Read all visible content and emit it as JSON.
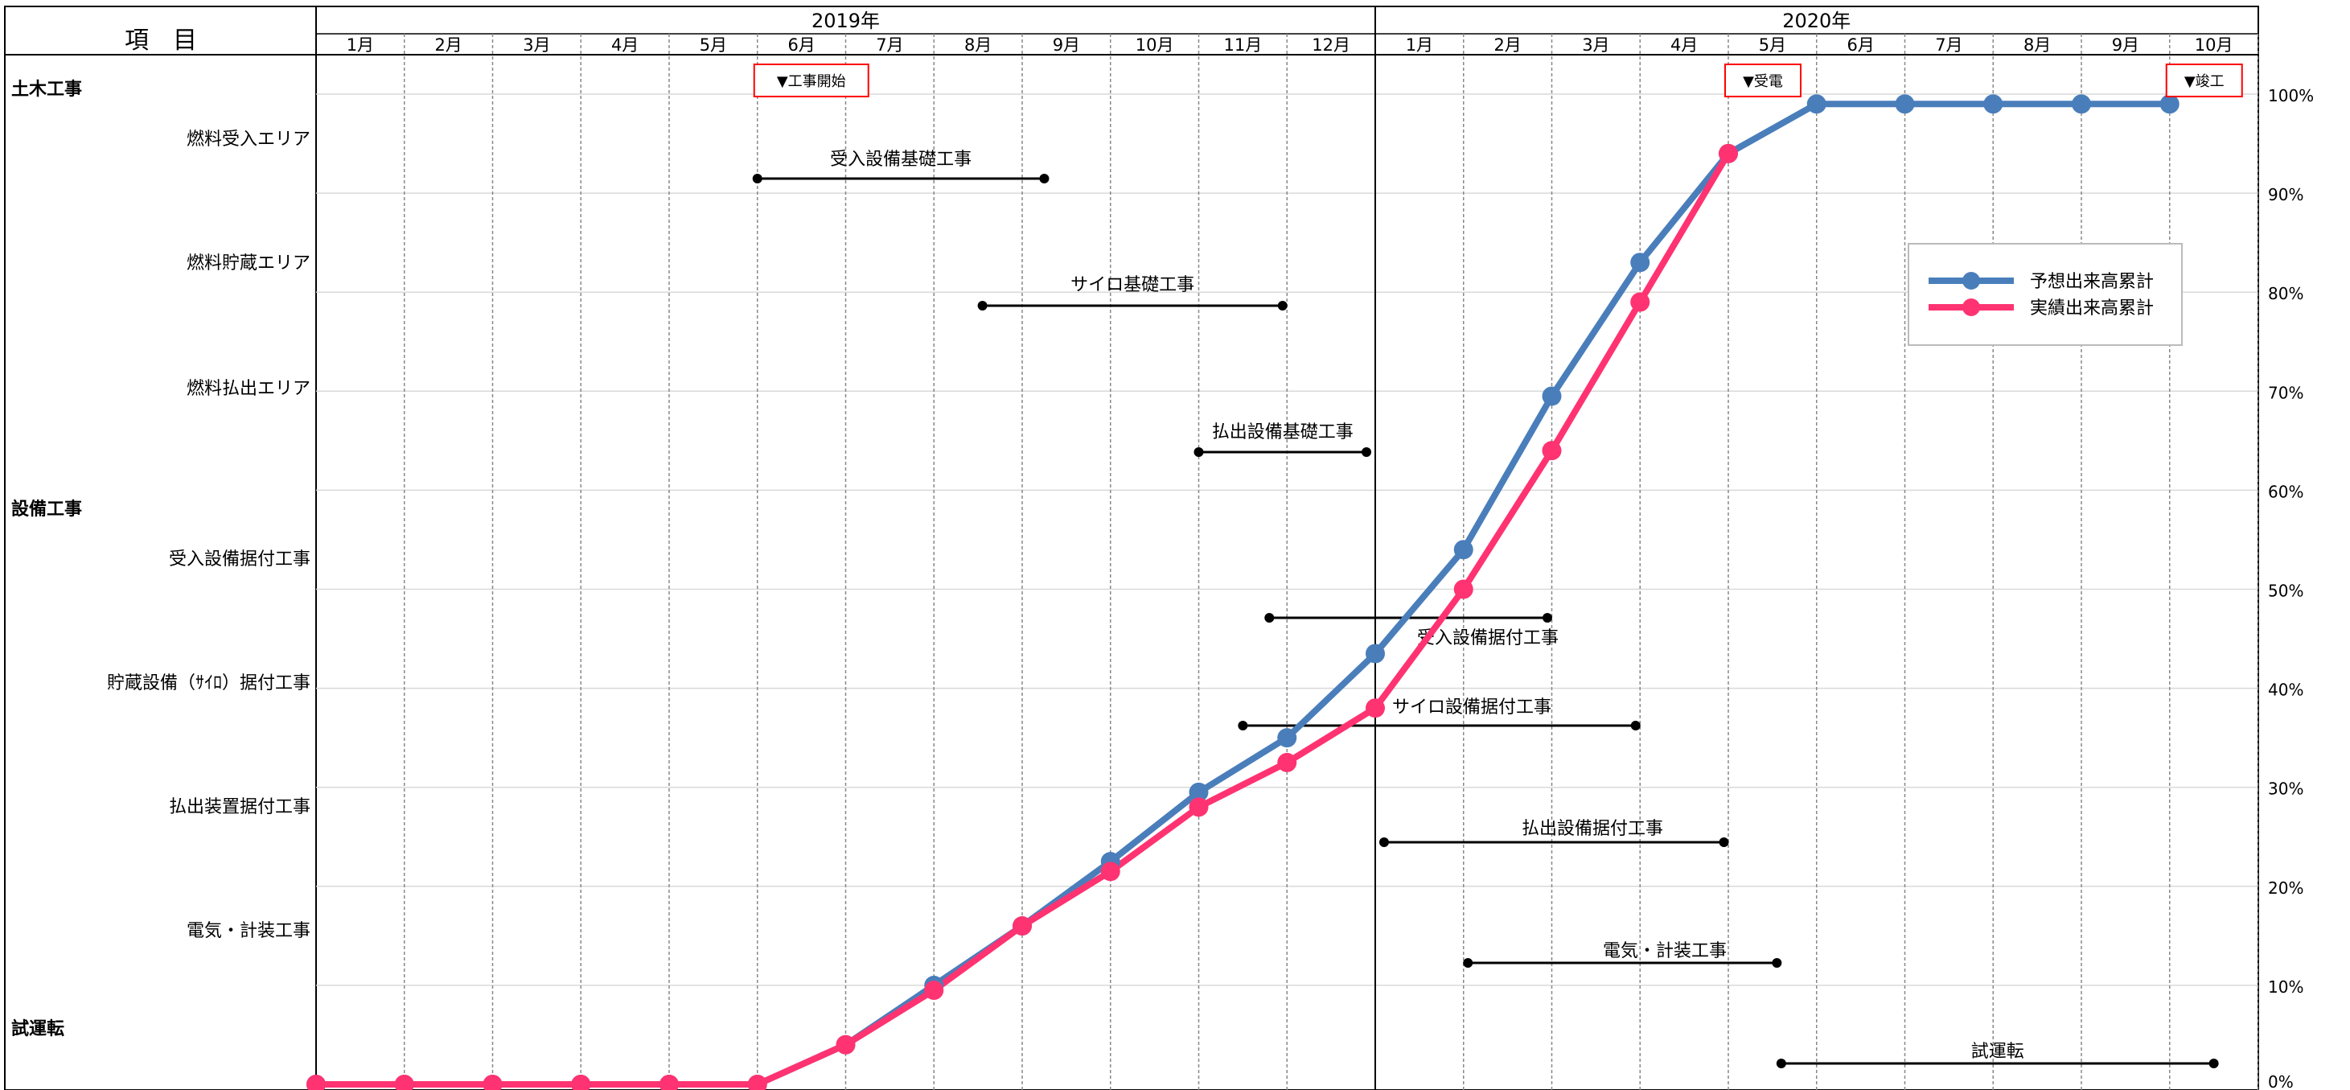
{
  "header": {
    "item_label": "項　目",
    "years": [
      "2019年",
      "2020年"
    ],
    "months_2019": [
      "1月",
      "2月",
      "3月",
      "4月",
      "5月",
      "6月",
      "7月",
      "8月",
      "9月",
      "10月",
      "11月",
      "12月"
    ],
    "months_2020": [
      "1月",
      "2月",
      "3月",
      "4月",
      "5月",
      "6月",
      "7月",
      "8月",
      "9月",
      "10月"
    ]
  },
  "milestones": [
    {
      "label": "▼工事開始",
      "month_index": 5
    },
    {
      "label": "▼受電",
      "month_index": 16
    },
    {
      "label": "▼竣工",
      "month_index": 21
    }
  ],
  "rows": [
    {
      "label": "土木工事",
      "kind": "category"
    },
    {
      "label": "燃料受入エリア",
      "kind": "item"
    },
    {
      "label": "燃料貯蔵エリア",
      "kind": "item"
    },
    {
      "label": "燃料払出エリア",
      "kind": "item"
    },
    {
      "label": "設備工事",
      "kind": "category"
    },
    {
      "label": "受入設備据付工事",
      "kind": "item"
    },
    {
      "label": "貯蔵設備（ｻｲﾛ）据付工事",
      "kind": "item"
    },
    {
      "label": "払出装置据付工事",
      "kind": "item"
    },
    {
      "label": "電気・計装工事",
      "kind": "item"
    },
    {
      "label": "試運転",
      "kind": "category"
    }
  ],
  "tasks": [
    {
      "label": "受入設備基礎工事",
      "start": 5.0,
      "end": 8.25
    },
    {
      "label": "サイロ基礎工事",
      "start": 7.55,
      "end": 10.95
    },
    {
      "label": "払出設備基礎工事",
      "start": 10.0,
      "end": 11.9
    },
    {
      "label": "受入設備据付工事",
      "start": 10.8,
      "end": 13.95
    },
    {
      "label": "サイロ設備据付工事",
      "start": 10.5,
      "end": 14.95
    },
    {
      "label": "払出設備据付工事",
      "start": 12.1,
      "end": 15.95
    },
    {
      "label": "電気・計装工事",
      "start": 13.05,
      "end": 16.55
    },
    {
      "label": "試運転",
      "start": 16.6,
      "end": 21.5
    }
  ],
  "chart_data": {
    "type": "line",
    "y_axis_ticks": [
      "0%",
      "10%",
      "20%",
      "30%",
      "40%",
      "50%",
      "60%",
      "70%",
      "80%",
      "90%",
      "100%"
    ],
    "ylim": [
      0,
      100
    ],
    "legend_position": "right",
    "series": [
      {
        "name": "予想出来高累計",
        "color": "#4a7ebb",
        "x": [
          0,
          1,
          2,
          3,
          4,
          5,
          6,
          7,
          8,
          9,
          10,
          11,
          12,
          13,
          14,
          15,
          16,
          17,
          18,
          19,
          20,
          21
        ],
        "values": [
          0,
          0,
          0,
          0,
          0,
          0,
          4,
          10,
          16,
          22.5,
          29.5,
          35,
          43.5,
          54,
          69.5,
          83,
          94,
          99,
          99,
          99,
          99,
          99
        ]
      },
      {
        "name": "実績出来高累計",
        "color": "#ff3371",
        "x": [
          0,
          1,
          2,
          3,
          4,
          5,
          6,
          7,
          8,
          9,
          10,
          11,
          12,
          13,
          14,
          15,
          16
        ],
        "values": [
          0,
          0,
          0,
          0,
          0,
          0,
          4,
          9.5,
          16,
          21.5,
          28,
          32.5,
          38,
          50,
          64,
          79,
          94
        ]
      }
    ]
  }
}
